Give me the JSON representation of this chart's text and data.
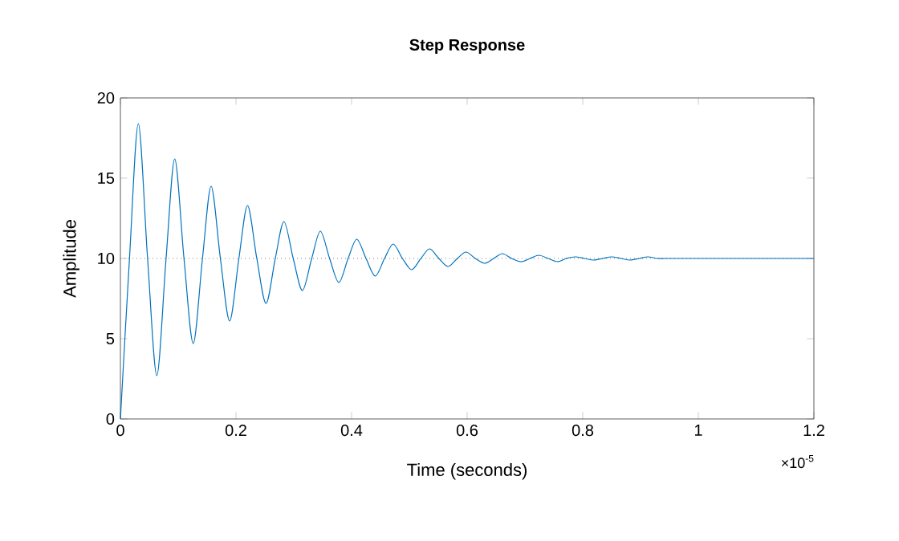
{
  "chart_data": {
    "type": "line",
    "title": "Step Response",
    "xlabel": "Time (seconds)",
    "ylabel": "Amplitude",
    "annotations": [
      "×10$^{-5}$"
    ],
    "xlim": [
      0,
      1.2
    ],
    "xticks": [
      0,
      0.2,
      0.4,
      0.6,
      0.8,
      1,
      1.2
    ],
    "ylim": [
      0,
      20
    ],
    "yticks": [
      0,
      5,
      10,
      15,
      20
    ],
    "grid": false,
    "line_style": "solid",
    "marker": "none",
    "ref_lines": [
      {
        "axis": "y",
        "value": 10,
        "color": "#808080",
        "line_style": "dotted"
      }
    ],
    "series": [
      {
        "color": "#0072bd",
        "x": [
          0,
          0.0157,
          0.031,
          0.047,
          0.063,
          0.079,
          0.094,
          0.11,
          0.126,
          0.142,
          0.157,
          0.173,
          0.189,
          0.205,
          0.22,
          0.236,
          0.252,
          0.268,
          0.283,
          0.299,
          0.315,
          0.331,
          0.346,
          0.362,
          0.378,
          0.394,
          0.409,
          0.425,
          0.441,
          0.457,
          0.472,
          0.488,
          0.504,
          0.52,
          0.535,
          0.551,
          0.567,
          0.583,
          0.598,
          0.614,
          0.63,
          0.646,
          0.661,
          0.677,
          0.693,
          0.709,
          0.724,
          0.74,
          0.756,
          0.772,
          0.787,
          0.803,
          0.819,
          0.835,
          0.85,
          0.866,
          0.882,
          0.898,
          0.913,
          0.929,
          0.945,
          1.0,
          1.2
        ],
        "values": [
          0,
          10,
          18.4,
          10,
          2.7,
          10,
          16.2,
          10,
          4.7,
          10,
          14.5,
          10,
          6.1,
          10,
          13.3,
          10,
          7.2,
          10,
          12.3,
          10,
          8.0,
          10,
          11.7,
          10,
          8.5,
          10,
          11.2,
          10,
          8.9,
          10,
          10.9,
          10,
          9.3,
          10,
          10.6,
          10,
          9.5,
          10,
          10.4,
          10,
          9.7,
          10,
          10.3,
          10,
          9.8,
          10,
          10.2,
          10,
          9.8,
          10,
          10.1,
          10,
          9.9,
          10,
          10.1,
          10,
          9.9,
          10,
          10.1,
          10,
          10.0,
          10,
          10
        ]
      }
    ]
  }
}
